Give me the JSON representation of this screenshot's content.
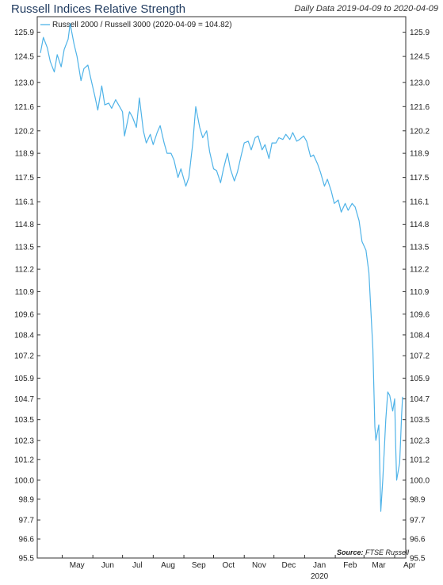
{
  "header": {
    "title": "Russell Indices Relative Strength",
    "subtitle": "Daily Data 2019-04-09 to 2020-04-09"
  },
  "source": {
    "label": "Source:",
    "value": "FTSE Russell"
  },
  "colors": {
    "series": "#4fb3e8",
    "axis": "#333333",
    "title": "#1f3a5f"
  },
  "chart_data": {
    "type": "line",
    "title": "Russell Indices Relative Strength",
    "subtitle": "Daily Data 2019-04-09 to 2020-04-09",
    "xlabel": "",
    "ylabel": "",
    "ylim": [
      95.5,
      126.8
    ],
    "y_ticks": [
      95.5,
      96.6,
      97.7,
      98.9,
      100.0,
      101.2,
      102.3,
      103.5,
      104.7,
      105.9,
      107.2,
      108.4,
      109.6,
      110.9,
      112.2,
      113.5,
      114.8,
      116.1,
      117.5,
      118.9,
      120.2,
      121.6,
      123.0,
      124.5,
      125.9
    ],
    "x_ticks": [
      "May",
      "Jun",
      "Jul",
      "Aug",
      "Sep",
      "Oct",
      "Nov",
      "Dec",
      "Jan",
      "Feb",
      "Mar",
      "Apr"
    ],
    "x_year_label": "2020",
    "x_range": [
      "2019-04-09",
      "2020-04-09"
    ],
    "legend_position": "top-left",
    "grid": false,
    "series": [
      {
        "name": "Russell 2000 / Russell 3000 (2020-04-09 = 104.82)",
        "points": [
          [
            "2019-04-09",
            124.7
          ],
          [
            "2019-04-12",
            125.6
          ],
          [
            "2019-04-16",
            125.0
          ],
          [
            "2019-04-19",
            124.2
          ],
          [
            "2019-04-23",
            123.6
          ],
          [
            "2019-04-26",
            124.6
          ],
          [
            "2019-04-30",
            123.9
          ],
          [
            "2019-05-03",
            124.9
          ],
          [
            "2019-05-07",
            125.5
          ],
          [
            "2019-05-09",
            126.4
          ],
          [
            "2019-05-13",
            125.2
          ],
          [
            "2019-05-16",
            124.5
          ],
          [
            "2019-05-20",
            123.1
          ],
          [
            "2019-05-23",
            123.8
          ],
          [
            "2019-05-27",
            124.0
          ],
          [
            "2019-05-30",
            123.2
          ],
          [
            "2019-06-03",
            122.2
          ],
          [
            "2019-06-06",
            121.4
          ],
          [
            "2019-06-10",
            122.8
          ],
          [
            "2019-06-13",
            121.7
          ],
          [
            "2019-06-17",
            121.8
          ],
          [
            "2019-06-20",
            121.5
          ],
          [
            "2019-06-24",
            122.0
          ],
          [
            "2019-06-27",
            121.7
          ],
          [
            "2019-07-01",
            121.3
          ],
          [
            "2019-07-03",
            119.9
          ],
          [
            "2019-07-08",
            121.3
          ],
          [
            "2019-07-11",
            121.0
          ],
          [
            "2019-07-15",
            120.4
          ],
          [
            "2019-07-18",
            122.1
          ],
          [
            "2019-07-22",
            120.2
          ],
          [
            "2019-07-25",
            119.5
          ],
          [
            "2019-07-29",
            120.0
          ],
          [
            "2019-08-01",
            119.4
          ],
          [
            "2019-08-05",
            120.1
          ],
          [
            "2019-08-08",
            120.5
          ],
          [
            "2019-08-12",
            119.5
          ],
          [
            "2019-08-15",
            118.9
          ],
          [
            "2019-08-19",
            118.9
          ],
          [
            "2019-08-22",
            118.5
          ],
          [
            "2019-08-26",
            117.5
          ],
          [
            "2019-08-29",
            118.0
          ],
          [
            "2019-09-03",
            117.0
          ],
          [
            "2019-09-06",
            117.5
          ],
          [
            "2019-09-10",
            119.5
          ],
          [
            "2019-09-13",
            121.6
          ],
          [
            "2019-09-17",
            120.4
          ],
          [
            "2019-09-20",
            119.8
          ],
          [
            "2019-09-24",
            120.2
          ],
          [
            "2019-09-27",
            119.0
          ],
          [
            "2019-10-01",
            118.0
          ],
          [
            "2019-10-04",
            117.9
          ],
          [
            "2019-10-08",
            117.2
          ],
          [
            "2019-10-11",
            118.0
          ],
          [
            "2019-10-15",
            118.9
          ],
          [
            "2019-10-18",
            118.0
          ],
          [
            "2019-10-22",
            117.3
          ],
          [
            "2019-10-25",
            117.8
          ],
          [
            "2019-10-29",
            118.8
          ],
          [
            "2019-11-01",
            119.5
          ],
          [
            "2019-11-05",
            119.6
          ],
          [
            "2019-11-08",
            119.1
          ],
          [
            "2019-11-12",
            119.8
          ],
          [
            "2019-11-15",
            119.9
          ],
          [
            "2019-11-19",
            119.1
          ],
          [
            "2019-11-22",
            119.4
          ],
          [
            "2019-11-26",
            118.6
          ],
          [
            "2019-11-29",
            119.5
          ],
          [
            "2019-12-03",
            119.5
          ],
          [
            "2019-12-06",
            119.8
          ],
          [
            "2019-12-10",
            119.7
          ],
          [
            "2019-12-13",
            120.0
          ],
          [
            "2019-12-17",
            119.7
          ],
          [
            "2019-12-20",
            120.1
          ],
          [
            "2019-12-24",
            119.6
          ],
          [
            "2019-12-27",
            119.7
          ],
          [
            "2019-12-31",
            119.9
          ],
          [
            "2020-01-03",
            119.6
          ],
          [
            "2020-01-07",
            118.7
          ],
          [
            "2020-01-10",
            118.8
          ],
          [
            "2020-01-14",
            118.3
          ],
          [
            "2020-01-17",
            117.8
          ],
          [
            "2020-01-21",
            117.0
          ],
          [
            "2020-01-24",
            117.4
          ],
          [
            "2020-01-28",
            116.7
          ],
          [
            "2020-01-31",
            116.0
          ],
          [
            "2020-02-04",
            116.2
          ],
          [
            "2020-02-07",
            115.5
          ],
          [
            "2020-02-11",
            116.0
          ],
          [
            "2020-02-14",
            115.6
          ],
          [
            "2020-02-18",
            116.0
          ],
          [
            "2020-02-21",
            115.8
          ],
          [
            "2020-02-25",
            115.0
          ],
          [
            "2020-02-28",
            113.8
          ],
          [
            "2020-03-03",
            113.3
          ],
          [
            "2020-03-06",
            112.0
          ],
          [
            "2020-03-10",
            107.6
          ],
          [
            "2020-03-12",
            103.1
          ],
          [
            "2020-03-13",
            102.3
          ],
          [
            "2020-03-16",
            103.2
          ],
          [
            "2020-03-18",
            98.2
          ],
          [
            "2020-03-20",
            100.0
          ],
          [
            "2020-03-23",
            103.5
          ],
          [
            "2020-03-25",
            105.1
          ],
          [
            "2020-03-27",
            104.9
          ],
          [
            "2020-03-30",
            104.0
          ],
          [
            "2020-04-01",
            104.7
          ],
          [
            "2020-04-02",
            102.0
          ],
          [
            "2020-04-03",
            100.0
          ],
          [
            "2020-04-06",
            101.0
          ],
          [
            "2020-04-07",
            102.3
          ],
          [
            "2020-04-08",
            103.8
          ],
          [
            "2020-04-09",
            104.82
          ]
        ]
      }
    ]
  }
}
